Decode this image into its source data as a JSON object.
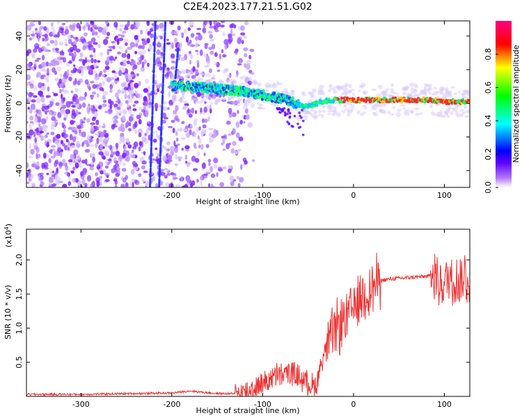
{
  "figure": {
    "title": "C2E4.2023.177.21.51.G02"
  },
  "chart_data": [
    {
      "type": "heatmap",
      "xlabel": "Height of straight line (km)",
      "ylabel": "Frequency (Hz)",
      "xlim": [
        -360,
        128
      ],
      "ylim": [
        -50,
        49
      ],
      "xticks": [
        -300,
        -200,
        -100,
        0,
        100
      ],
      "yticks": [
        -40,
        -20,
        0,
        20,
        40
      ],
      "colorbar": {
        "label": "Normalized spectral amplitude",
        "range": [
          0,
          1
        ],
        "ticks": [
          "0.0",
          "0.2",
          "0.4",
          "0.6",
          "0.8"
        ],
        "ticks_values": [
          0.0,
          0.2,
          0.4,
          0.6,
          0.8
        ],
        "colors": [
          "#ffffff",
          "#7a00ff",
          "#0000ff",
          "#00ffff",
          "#00ff00",
          "#ffff00",
          "#ff0000",
          "#ff0080"
        ]
      },
      "ridge": {
        "x": [
          -195,
          -180,
          -160,
          -140,
          -120,
          -100,
          -80,
          -65,
          -55,
          -45,
          -35,
          -20,
          0,
          20,
          40,
          60,
          80,
          100,
          128
        ],
        "freq": [
          10,
          10,
          9,
          8,
          7,
          5,
          3,
          0,
          -2,
          -1,
          1,
          2,
          2,
          2,
          2,
          2,
          2,
          1,
          1
        ]
      },
      "streak_lines": [
        {
          "x": [
            -214,
            -207
          ],
          "freq": [
            -50,
            49
          ]
        },
        {
          "x": [
            -224,
            -218
          ],
          "freq": [
            -50,
            49
          ]
        },
        {
          "x": [
            -196,
            -193
          ],
          "freq": [
            15,
            33
          ]
        }
      ]
    },
    {
      "type": "line",
      "xlabel": "Height of straight line (km)",
      "ylabel": "SNR (10 * v/v)",
      "yscale_label": "(x10",
      "yscale_exp": "4",
      "yscale_close": ")",
      "xlim": [
        -360,
        128
      ],
      "ylim": [
        0,
        2.45
      ],
      "xticks": [
        -300,
        -200,
        -100,
        0,
        100
      ],
      "yticks": [
        "0.5",
        "1.0",
        "1.5",
        "2.0"
      ],
      "ytick_values": [
        0.5,
        1.0,
        1.5,
        2.0
      ],
      "series": [
        {
          "color": "#ee3333",
          "x": [
            -360,
            -300,
            -250,
            -200,
            -180,
            -150,
            -130,
            -115,
            -100,
            -85,
            -70,
            -55,
            -45,
            -40,
            -35,
            -30,
            -25,
            -20,
            -15,
            -10,
            -5,
            0,
            5,
            10,
            15,
            20,
            25,
            30,
            40,
            50,
            60,
            70,
            80,
            85,
            90,
            95,
            100,
            105,
            110,
            115,
            120,
            128
          ],
          "y": [
            0.03,
            0.03,
            0.04,
            0.05,
            0.08,
            0.04,
            0.04,
            0.08,
            0.2,
            0.3,
            0.35,
            0.25,
            0.15,
            0.2,
            0.55,
            0.7,
            0.85,
            0.95,
            1.05,
            1.15,
            1.2,
            1.3,
            1.4,
            1.5,
            1.55,
            1.6,
            1.65,
            1.7,
            1.72,
            1.73,
            1.74,
            1.75,
            1.76,
            1.76,
            1.75,
            1.7,
            1.65,
            1.75,
            1.72,
            1.7,
            1.72,
            1.71
          ]
        }
      ]
    }
  ]
}
